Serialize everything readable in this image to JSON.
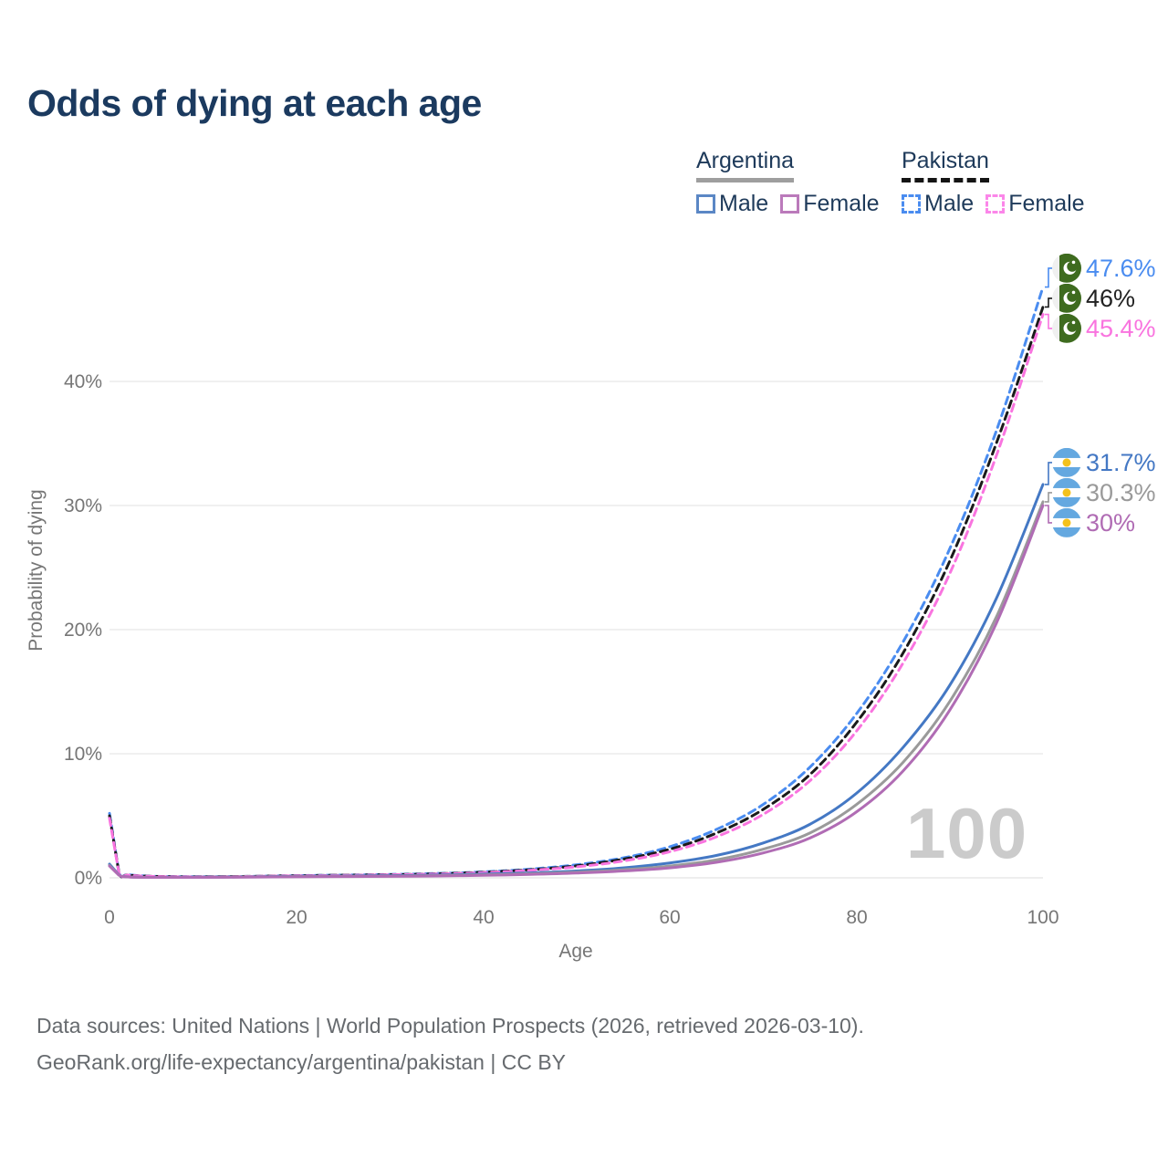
{
  "title": "Odds of dying at each age",
  "watermark": "100",
  "legend": {
    "groups": [
      {
        "name": "Argentina",
        "line_style": "solid",
        "underline_color": "#9e9e9e",
        "items": [
          {
            "label": "Male",
            "color": "#5b87c5"
          },
          {
            "label": "Female",
            "color": "#bb7abb"
          }
        ]
      },
      {
        "name": "Pakistan",
        "line_style": "dashed",
        "underline_color": "#141414",
        "items": [
          {
            "label": "Male",
            "color": "#4a8cf0"
          },
          {
            "label": "Female",
            "color": "#fb86e9"
          }
        ]
      }
    ]
  },
  "chart_data": {
    "type": "line",
    "title": "Odds of dying at each age",
    "xlabel": "Age",
    "ylabel": "Probability of dying",
    "xlim": [
      0,
      100
    ],
    "ylim": [
      0,
      48
    ],
    "grid": "horizontal",
    "x_tick_labels": [
      "0",
      "20",
      "40",
      "60",
      "80",
      "100"
    ],
    "x_tick_values": [
      0,
      20,
      40,
      60,
      80,
      100
    ],
    "y_tick_labels": [
      "0%",
      "10%",
      "20%",
      "30%",
      "40%"
    ],
    "y_tick_values": [
      0,
      10,
      20,
      30,
      40
    ],
    "x": [
      0,
      1,
      2,
      5,
      10,
      15,
      20,
      25,
      30,
      35,
      40,
      45,
      50,
      55,
      60,
      65,
      70,
      75,
      80,
      85,
      90,
      95,
      100
    ],
    "series": [
      {
        "name": "Pakistan Male",
        "country": "Pakistan",
        "sex": "Male",
        "flag": "pakistan-flag",
        "color": "#4a8cf0",
        "dash": true,
        "end_label": "47.6%",
        "values": [
          5.2,
          0.5,
          0.25,
          0.12,
          0.09,
          0.12,
          0.18,
          0.22,
          0.27,
          0.35,
          0.48,
          0.7,
          1.05,
          1.6,
          2.5,
          3.9,
          5.9,
          8.9,
          13.2,
          19.0,
          26.5,
          36.0,
          47.6
        ]
      },
      {
        "name": "Pakistan",
        "country": "Pakistan",
        "sex": "Both",
        "flag": "pakistan-flag",
        "color": "#1a1a1a",
        "dash": true,
        "end_label": "46%",
        "values": [
          5.0,
          0.48,
          0.23,
          0.11,
          0.085,
          0.115,
          0.17,
          0.21,
          0.25,
          0.32,
          0.45,
          0.65,
          0.96,
          1.5,
          2.3,
          3.6,
          5.5,
          8.3,
          12.5,
          18.1,
          25.5,
          35.0,
          46.0
        ]
      },
      {
        "name": "Pakistan Female",
        "country": "Pakistan",
        "sex": "Female",
        "flag": "pakistan-flag",
        "color": "#f974df",
        "dash": true,
        "end_label": "45.4%",
        "values": [
          4.8,
          0.45,
          0.22,
          0.1,
          0.08,
          0.11,
          0.16,
          0.2,
          0.24,
          0.3,
          0.42,
          0.6,
          0.88,
          1.35,
          2.1,
          3.3,
          5.1,
          7.8,
          11.8,
          17.3,
          24.5,
          34.0,
          45.4
        ]
      },
      {
        "name": "Argentina Male",
        "country": "Argentina",
        "sex": "Male",
        "flag": "argentina-flag",
        "color": "#4478c4",
        "dash": false,
        "end_label": "31.7%",
        "values": [
          1.1,
          0.25,
          0.08,
          0.04,
          0.05,
          0.08,
          0.12,
          0.15,
          0.18,
          0.22,
          0.3,
          0.4,
          0.55,
          0.8,
          1.2,
          1.8,
          2.8,
          4.3,
          6.8,
          10.5,
          15.5,
          22.5,
          31.7
        ]
      },
      {
        "name": "Argentina",
        "country": "Argentina",
        "sex": "Both",
        "flag": "argentina-flag",
        "color": "#9a9a9a",
        "dash": false,
        "end_label": "30.3%",
        "values": [
          1.0,
          0.23,
          0.075,
          0.038,
          0.045,
          0.07,
          0.1,
          0.12,
          0.14,
          0.18,
          0.24,
          0.32,
          0.45,
          0.65,
          0.95,
          1.45,
          2.3,
          3.6,
          5.9,
          9.3,
          14.2,
          21.0,
          30.3
        ]
      },
      {
        "name": "Argentina Female",
        "country": "Argentina",
        "sex": "Female",
        "flag": "argentina-flag",
        "color": "#b06cb4",
        "dash": false,
        "end_label": "30%",
        "values": [
          0.95,
          0.22,
          0.07,
          0.035,
          0.04,
          0.06,
          0.08,
          0.1,
          0.12,
          0.15,
          0.2,
          0.27,
          0.38,
          0.55,
          0.8,
          1.25,
          2.0,
          3.2,
          5.3,
          8.6,
          13.5,
          20.5,
          30.0
        ]
      }
    ]
  },
  "footer": {
    "line1": "Data sources: United Nations | World Population Prospects (2026, retrieved 2026-03-10).",
    "line2": "GeoRank.org/life-expectancy/argentina/pakistan | CC BY"
  }
}
